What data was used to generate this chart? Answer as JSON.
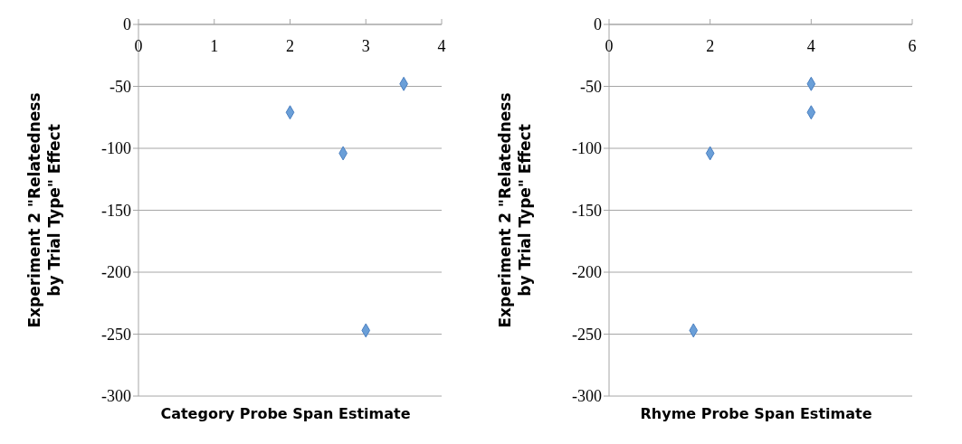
{
  "chart_data": [
    {
      "type": "scatter",
      "xlabel": "Category Probe Span Estimate",
      "ylabel": "Experiment 2 \"Relatedness by Trial Type\" Effect",
      "x": [
        2,
        2.7,
        3.5,
        3
      ],
      "values": [
        -71,
        -104,
        -48,
        -247
      ],
      "color": "#6a9fd8",
      "marker": "diamond",
      "xlim": [
        0,
        4
      ],
      "xticks": [
        0,
        1,
        2,
        3,
        4
      ],
      "ylim": [
        -300,
        0
      ],
      "yticks": [
        -300,
        -250,
        -200,
        -150,
        -100,
        -50,
        0
      ],
      "grid": "y"
    },
    {
      "type": "scatter",
      "xlabel": "Rhyme Probe Span Estimate",
      "ylabel": "Experiment 2 \"Relatedness by Trial Type\" Effect",
      "x": [
        4,
        4,
        2,
        1.67
      ],
      "values": [
        -48,
        -71,
        -104,
        -247
      ],
      "color": "#6a9fd8",
      "marker": "diamond",
      "xlim": [
        0,
        6
      ],
      "xticks": [
        0,
        2,
        4,
        6
      ],
      "ylim": [
        -300,
        0
      ],
      "yticks": [
        -300,
        -250,
        -200,
        -150,
        -100,
        -50,
        0
      ],
      "grid": "y"
    }
  ]
}
